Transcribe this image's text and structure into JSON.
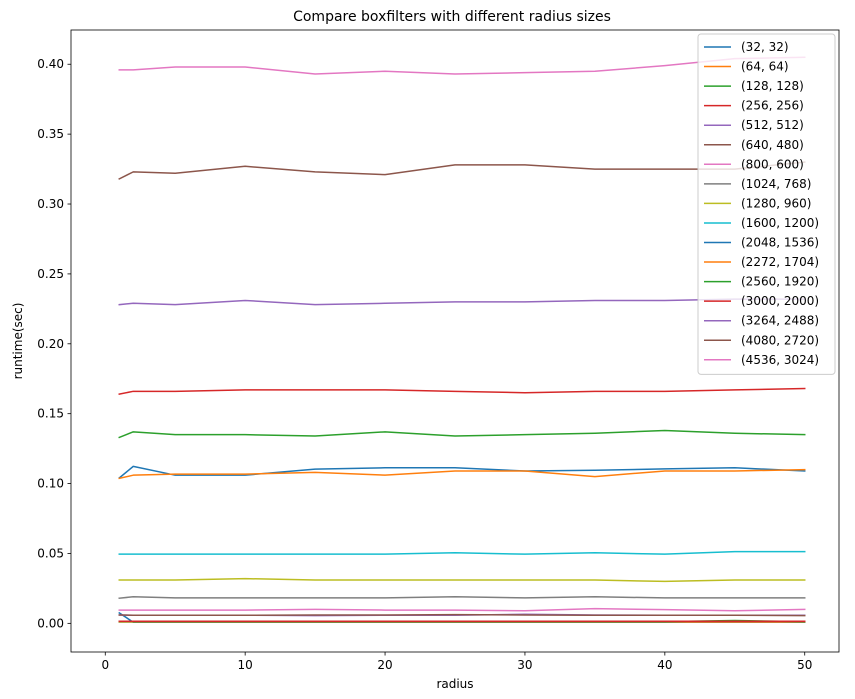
{
  "chart_data": {
    "type": "line",
    "title": "Compare boxfilters with different radius sizes",
    "xlabel": "radius",
    "ylabel": "runtime(sec)",
    "xlim": [
      -2.45,
      52.45
    ],
    "ylim": [
      -0.0205,
      0.4245
    ],
    "xticks": [
      0,
      10,
      20,
      30,
      40,
      50
    ],
    "yticks": [
      0.0,
      0.05,
      0.1,
      0.15,
      0.2,
      0.25,
      0.3,
      0.35,
      0.4
    ],
    "ytick_labels": [
      "0.00",
      "0.05",
      "0.10",
      "0.15",
      "0.20",
      "0.25",
      "0.30",
      "0.35",
      "0.40"
    ],
    "grid": false,
    "legend_position": "top-right",
    "x": [
      1,
      2,
      5,
      10,
      15,
      20,
      25,
      30,
      35,
      40,
      45,
      50
    ],
    "series": [
      {
        "name": "(32, 32)",
        "color": "#1f77b4",
        "values": [
          0.0075,
          0.0008,
          0.0008,
          0.0008,
          0.0008,
          0.0008,
          0.0008,
          0.0008,
          0.0008,
          0.0008,
          0.0008,
          0.0008
        ]
      },
      {
        "name": "(64, 64)",
        "color": "#ff7f0e",
        "values": [
          0.001,
          0.001,
          0.001,
          0.001,
          0.001,
          0.001,
          0.001,
          0.001,
          0.001,
          0.001,
          0.001,
          0.001
        ]
      },
      {
        "name": "(128, 128)",
        "color": "#2ca02c",
        "values": [
          0.0012,
          0.0012,
          0.0012,
          0.0012,
          0.0012,
          0.0012,
          0.0012,
          0.0012,
          0.0012,
          0.0012,
          0.002,
          0.0012
        ]
      },
      {
        "name": "(256, 256)",
        "color": "#d62728",
        "values": [
          0.0015,
          0.0015,
          0.0015,
          0.0015,
          0.0015,
          0.0015,
          0.0015,
          0.0015,
          0.0015,
          0.0015,
          0.0015,
          0.0015
        ]
      },
      {
        "name": "(512, 512)",
        "color": "#9467bd",
        "values": [
          0.006,
          0.0058,
          0.0058,
          0.0058,
          0.0055,
          0.0058,
          0.0058,
          0.0065,
          0.006,
          0.0058,
          0.0058,
          0.0058
        ]
      },
      {
        "name": "(640, 480)",
        "color": "#8c564b",
        "values": [
          0.006,
          0.0058,
          0.0058,
          0.0058,
          0.006,
          0.006,
          0.0062,
          0.006,
          0.0058,
          0.0058,
          0.0058,
          0.0055
        ]
      },
      {
        "name": "(800, 600)",
        "color": "#e377c2",
        "values": [
          0.0095,
          0.0095,
          0.0095,
          0.0095,
          0.01,
          0.0095,
          0.0095,
          0.009,
          0.0105,
          0.0098,
          0.009,
          0.01
        ]
      },
      {
        "name": "(1024, 768)",
        "color": "#7f7f7f",
        "values": [
          0.018,
          0.019,
          0.0182,
          0.0182,
          0.0182,
          0.0182,
          0.019,
          0.0182,
          0.019,
          0.0182,
          0.0182,
          0.0182
        ]
      },
      {
        "name": "(1280, 960)",
        "color": "#bcbd22",
        "values": [
          0.031,
          0.031,
          0.031,
          0.032,
          0.031,
          0.031,
          0.031,
          0.031,
          0.031,
          0.03,
          0.031,
          0.031
        ]
      },
      {
        "name": "(1600, 1200)",
        "color": "#17becf",
        "values": [
          0.0495,
          0.0495,
          0.0495,
          0.0495,
          0.0495,
          0.0495,
          0.0505,
          0.0495,
          0.0505,
          0.0495,
          0.0513,
          0.0513
        ]
      },
      {
        "name": "(2048, 1536)",
        "color": "#1f77b4",
        "values": [
          0.104,
          0.1123,
          0.106,
          0.106,
          0.1103,
          0.1113,
          0.1113,
          0.109,
          0.1095,
          0.1105,
          0.1113,
          0.109
        ]
      },
      {
        "name": "(2272, 1704)",
        "color": "#ff7f0e",
        "values": [
          0.1037,
          0.106,
          0.1068,
          0.1068,
          0.108,
          0.106,
          0.109,
          0.109,
          0.105,
          0.109,
          0.109,
          0.11
        ]
      },
      {
        "name": "(2560, 1920)",
        "color": "#2ca02c",
        "values": [
          0.133,
          0.137,
          0.135,
          0.135,
          0.134,
          0.137,
          0.134,
          0.135,
          0.136,
          0.138,
          0.136,
          0.135
        ]
      },
      {
        "name": "(3000, 2000)",
        "color": "#d62728",
        "values": [
          0.164,
          0.166,
          0.166,
          0.167,
          0.167,
          0.167,
          0.166,
          0.165,
          0.166,
          0.166,
          0.167,
          0.168
        ]
      },
      {
        "name": "(3264, 2488)",
        "color": "#9467bd",
        "values": [
          0.228,
          0.229,
          0.228,
          0.231,
          0.228,
          0.229,
          0.23,
          0.23,
          0.231,
          0.231,
          0.232,
          0.232
        ]
      },
      {
        "name": "(4080, 2720)",
        "color": "#8c564b",
        "values": [
          0.318,
          0.323,
          0.322,
          0.327,
          0.323,
          0.321,
          0.328,
          0.328,
          0.325,
          0.325,
          0.325,
          0.33
        ]
      },
      {
        "name": "(4536, 3024)",
        "color": "#e377c2",
        "values": [
          0.396,
          0.396,
          0.398,
          0.398,
          0.393,
          0.395,
          0.393,
          0.394,
          0.395,
          0.399,
          0.404,
          0.405
        ]
      }
    ]
  }
}
